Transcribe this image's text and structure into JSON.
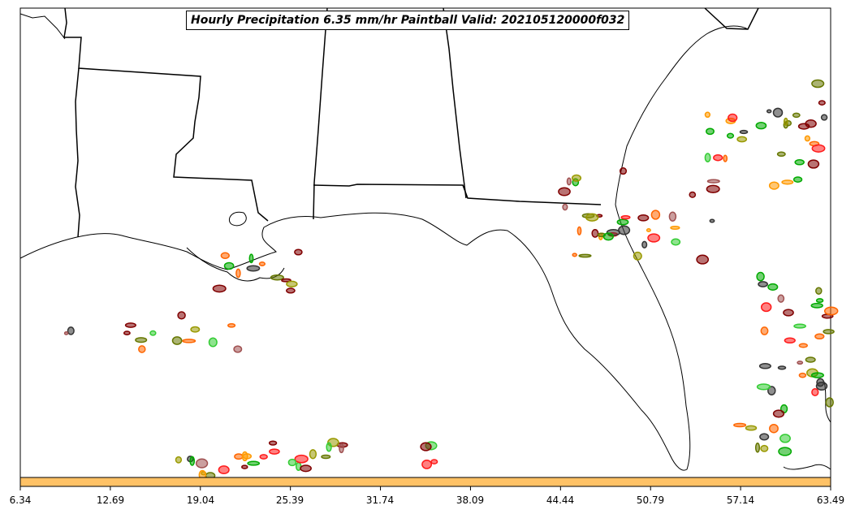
{
  "title": "Hourly Precipitation 6.35 mm/hr Paintball Valid: 202105120000f032",
  "colorbar": {
    "color": "#ffc266",
    "tick_labels": [
      "6.34",
      "12.69",
      "19.04",
      "25.39",
      "31.74",
      "38.09",
      "44.44",
      "50.79",
      "57.14",
      "63.49"
    ]
  },
  "paintball_colors": [
    "#800000",
    "#a05050",
    "#ff1a1a",
    "#ff6600",
    "#ff9900",
    "#999900",
    "#667700",
    "#00aa00",
    "#33cc33",
    "#333333"
  ]
}
